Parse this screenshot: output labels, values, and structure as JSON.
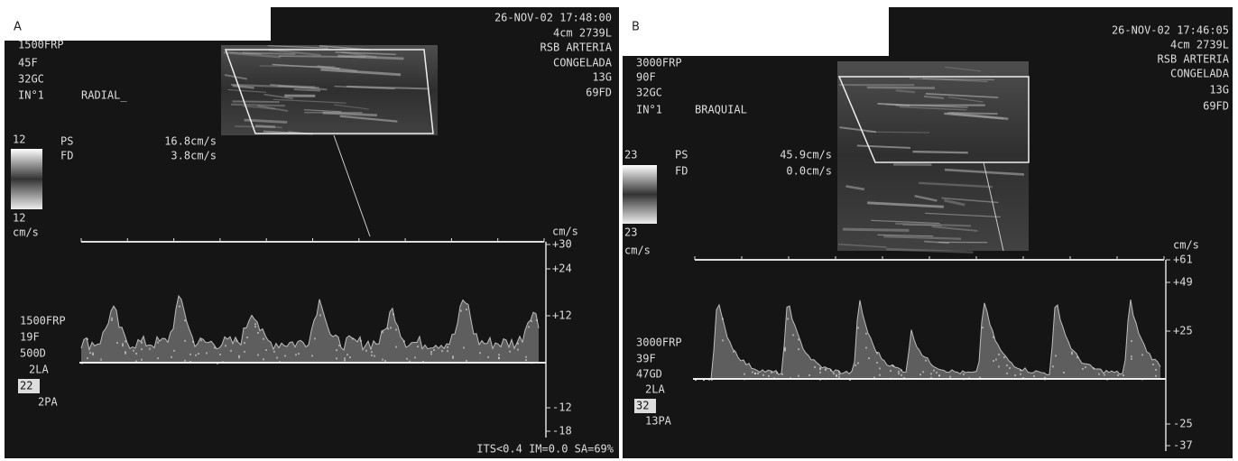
{
  "panels": [
    {
      "label": "A",
      "header": [
        "26-NOV-02 17:48:00",
        "4cm 2739L",
        "RSB ARTERIA",
        "CONGELADA",
        "13G",
        "69FD"
      ],
      "settings": [
        "1500FRP",
        "45F",
        "32GC",
        "IN°1"
      ],
      "vessel": "RADIAL_",
      "ps_label": "PS",
      "ps_value": "16.8cm/s",
      "fd_label": "FD",
      "fd_value": "3.8cm/s",
      "colorbar_top": "12",
      "colorbar_bottom": "12",
      "colorbar_unit": "cm/s",
      "axis_unit": "cm/s",
      "axis_labels": [
        "+30",
        "+24",
        "+12",
        "-12",
        "-18"
      ],
      "doppler_settings": [
        "1500FRP",
        "19F",
        "500D",
        "2LA",
        "22",
        "2PA"
      ],
      "footer": "ITS<0.4 IM=0.0 SA=69%"
    },
    {
      "label": "B",
      "header": [
        "26-NOV-02 17:46:05",
        "4cm 2739L",
        "RSB ARTERIA",
        "CONGELADA",
        "13G",
        "69FD"
      ],
      "settings": [
        "3000FRP",
        "90F",
        "32GC",
        "IN°1"
      ],
      "vessel": "BRAQUIAL",
      "ps_label": "PS",
      "ps_value": "45.9cm/s",
      "fd_label": "FD",
      "fd_value": "0.0cm/s",
      "colorbar_top": "23",
      "colorbar_bottom": "23",
      "colorbar_unit": "cm/s",
      "axis_unit": "cm/s",
      "axis_labels": [
        "+61",
        "+49",
        "+25",
        "-25",
        "-37"
      ],
      "doppler_settings": [
        "3000FRP",
        "39F",
        "47GD",
        "2LA",
        "32",
        "13PA"
      ]
    }
  ]
}
